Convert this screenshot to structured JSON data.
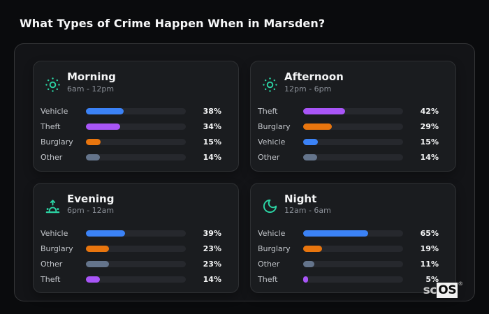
{
  "page": {
    "title": "What Types of Crime Happen When in Marsden?"
  },
  "brand": {
    "prefix": "sc",
    "box": "OS",
    "reg": "®"
  },
  "colors": {
    "page_bg": "#0a0b0d",
    "container_bg": "#131417",
    "panel_bg": "#1a1c1f",
    "track": "#26282d",
    "icon_accent": "#2bd4a4",
    "category_colors": {
      "Vehicle": "#3b82f6",
      "Theft": "#a855f7",
      "Burglary": "#e8750e",
      "Other": "#64748b"
    }
  },
  "chart_data": [
    {
      "type": "bar",
      "orientation": "horizontal",
      "title": "Morning",
      "subtitle": "6am - 12pm",
      "icon": "sun-icon",
      "unit": "%",
      "xlim": [
        0,
        100
      ],
      "categories": [
        "Vehicle",
        "Theft",
        "Burglary",
        "Other"
      ],
      "values": [
        38,
        34,
        15,
        14
      ]
    },
    {
      "type": "bar",
      "orientation": "horizontal",
      "title": "Afternoon",
      "subtitle": "12pm - 6pm",
      "icon": "sun-icon",
      "unit": "%",
      "xlim": [
        0,
        100
      ],
      "categories": [
        "Theft",
        "Burglary",
        "Vehicle",
        "Other"
      ],
      "values": [
        42,
        29,
        15,
        14
      ]
    },
    {
      "type": "bar",
      "orientation": "horizontal",
      "title": "Evening",
      "subtitle": "6pm - 12am",
      "icon": "sunrise-icon",
      "unit": "%",
      "xlim": [
        0,
        100
      ],
      "categories": [
        "Vehicle",
        "Burglary",
        "Other",
        "Theft"
      ],
      "values": [
        39,
        23,
        23,
        14
      ]
    },
    {
      "type": "bar",
      "orientation": "horizontal",
      "title": "Night",
      "subtitle": "12am - 6am",
      "icon": "moon-icon",
      "unit": "%",
      "xlim": [
        0,
        100
      ],
      "categories": [
        "Vehicle",
        "Burglary",
        "Other",
        "Theft"
      ],
      "values": [
        65,
        19,
        11,
        5
      ]
    }
  ]
}
